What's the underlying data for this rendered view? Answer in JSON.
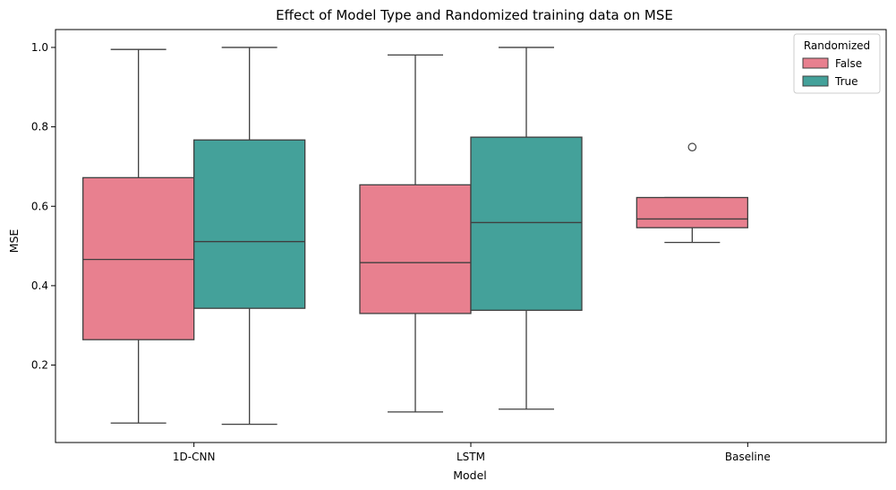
{
  "chart_data": {
    "type": "boxplot",
    "title": "Effect of Model Type and Randomized training data on MSE",
    "xlabel": "Model",
    "ylabel": "MSE",
    "categories": [
      "1D-CNN",
      "LSTM",
      "Baseline"
    ],
    "ylim": [
      0.005,
      1.045
    ],
    "yticks": [
      0.2,
      0.4,
      0.6,
      0.8,
      1.0
    ],
    "ytick_labels": [
      "0.2",
      "0.4",
      "0.6",
      "0.8",
      "1.0"
    ],
    "grid": false,
    "legend": {
      "title": "Randomized",
      "placement": "top-right",
      "entries": [
        "False",
        "True"
      ]
    },
    "series": [
      {
        "name": "False",
        "color": "#e8808f",
        "boxes": [
          {
            "category": "1D-CNN",
            "whisker_low": 0.054,
            "q1": 0.264,
            "median": 0.466,
            "q3": 0.672,
            "whisker_high": 0.995,
            "outliers": []
          },
          {
            "category": "LSTM",
            "whisker_low": 0.082,
            "q1": 0.33,
            "median": 0.458,
            "q3": 0.654,
            "whisker_high": 0.981,
            "outliers": []
          },
          {
            "category": "Baseline",
            "whisker_low": 0.509,
            "q1": 0.546,
            "median": 0.568,
            "q3": 0.622,
            "whisker_high": 0.622,
            "outliers": [
              0.749
            ]
          }
        ]
      },
      {
        "name": "True",
        "color": "#44a19a",
        "boxes": [
          {
            "category": "1D-CNN",
            "whisker_low": 0.051,
            "q1": 0.343,
            "median": 0.511,
            "q3": 0.767,
            "whisker_high": 1.0,
            "outliers": []
          },
          {
            "category": "LSTM",
            "whisker_low": 0.089,
            "q1": 0.338,
            "median": 0.559,
            "q3": 0.774,
            "whisker_high": 1.0,
            "outliers": []
          }
        ]
      }
    ]
  }
}
